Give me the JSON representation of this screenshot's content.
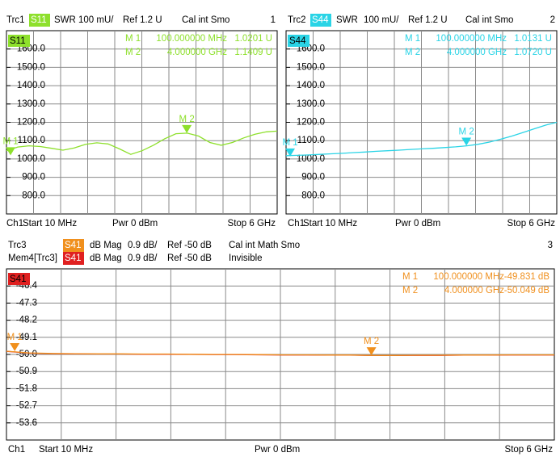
{
  "chart_data": [
    {
      "type": "line",
      "number": "1",
      "series": [
        {
          "name": "S11",
          "color": "#8ee02c",
          "trace": "Trc1",
          "format": "SWR",
          "scale": "100 mU/",
          "ref": "Ref 1.2 U",
          "status": "Cal int Smo",
          "values": [
            1045,
            1065,
            1072,
            1068,
            1058,
            1048,
            1060,
            1080,
            1088,
            1082,
            1055,
            1025,
            1045,
            1075,
            1110,
            1138,
            1141,
            1125,
            1090,
            1075,
            1090,
            1115,
            1135,
            1148,
            1152
          ]
        }
      ],
      "x": [
        10,
        260,
        510,
        760,
        1010,
        1260,
        1510,
        1760,
        2010,
        2260,
        2510,
        2760,
        3010,
        3260,
        3510,
        3760,
        4010,
        4260,
        4510,
        4760,
        5010,
        5260,
        5510,
        5760,
        6000
      ],
      "xlim": [
        10,
        6000
      ],
      "ylim": [
        700,
        1700
      ],
      "yticks": [
        {
          "value": 800,
          "label": "800.0"
        },
        {
          "value": 900,
          "label": "900.0"
        },
        {
          "value": 1000,
          "label": "1000.0"
        },
        {
          "value": 1100,
          "label": "1100.0"
        },
        {
          "value": 1200,
          "label": "1200.0"
        },
        {
          "value": 1300,
          "label": "1300.0"
        },
        {
          "value": 1400,
          "label": "1400.0"
        },
        {
          "value": 1500,
          "label": "1500.0"
        },
        {
          "value": 1600,
          "label": "1600.0"
        }
      ],
      "grid": true,
      "markers": {
        "names": [
          "M 1",
          "M 2"
        ],
        "x": [
          100,
          4000
        ],
        "x_labels": [
          "100.000000 MHz",
          "4.000000 GHz"
        ],
        "values": [
          1020.1,
          1140.9
        ],
        "value_labels": [
          "1.0201 U",
          "1.1409 U"
        ]
      },
      "footer": {
        "channel": "Ch1",
        "start": "Start 10 MHz",
        "power": "Pwr 0 dBm",
        "stop": "Stop 6 GHz"
      }
    },
    {
      "type": "line",
      "number": "2",
      "series": [
        {
          "name": "S44",
          "color": "#2ad4e6",
          "trace": "Trc2",
          "format": "SWR",
          "scale": "100 mU/",
          "ref": "Ref 1.2 U",
          "status": "Cal int Smo",
          "values": [
            1018,
            1020,
            1022,
            1025,
            1028,
            1031,
            1035,
            1038,
            1042,
            1045,
            1048,
            1052,
            1055,
            1058,
            1062,
            1066,
            1072,
            1080,
            1092,
            1108,
            1125,
            1145,
            1165,
            1185,
            1200
          ]
        }
      ],
      "x": [
        10,
        260,
        510,
        760,
        1010,
        1260,
        1510,
        1760,
        2010,
        2260,
        2510,
        2760,
        3010,
        3260,
        3510,
        3760,
        4010,
        4260,
        4510,
        4760,
        5010,
        5260,
        5510,
        5760,
        6000
      ],
      "xlim": [
        10,
        6000
      ],
      "ylim": [
        700,
        1700
      ],
      "yticks": [
        {
          "value": 800,
          "label": "800.0"
        },
        {
          "value": 900,
          "label": "900.0"
        },
        {
          "value": 1000,
          "label": "1000.0"
        },
        {
          "value": 1100,
          "label": "1100.0"
        },
        {
          "value": 1200,
          "label": "1200.0"
        },
        {
          "value": 1300,
          "label": "1300.0"
        },
        {
          "value": 1400,
          "label": "1400.0"
        },
        {
          "value": 1500,
          "label": "1500.0"
        },
        {
          "value": 1600,
          "label": "1600.0"
        }
      ],
      "grid": true,
      "markers": {
        "names": [
          "M 1",
          "M 2"
        ],
        "x": [
          100,
          4000
        ],
        "x_labels": [
          "100.000000 MHz",
          "4.000000 GHz"
        ],
        "values": [
          1013.1,
          1072.0
        ],
        "value_labels": [
          "1.0131 U",
          "1.0720 U"
        ]
      },
      "footer": {
        "channel": "Ch1",
        "start": "Start 10 MHz",
        "power": "Pwr 0 dBm",
        "stop": "Stop 6 GHz"
      }
    },
    {
      "type": "line",
      "number": "3",
      "series": [
        {
          "name": "S41",
          "color": "#f0901e",
          "trace": "Trc3",
          "format": "dB Mag",
          "scale": "0.9 dB/",
          "ref": "Ref -50 dB",
          "status": "Cal int Math Smo",
          "values": [
            -49.83,
            -49.92,
            -49.95,
            -49.96,
            -49.97,
            -49.97,
            -49.98,
            -49.98,
            -49.99,
            -50.0,
            -50.0,
            -50.01,
            -50.02,
            -50.02,
            -50.03,
            -50.03,
            -50.05,
            -50.05,
            -50.04,
            -50.04,
            -50.03,
            -50.03,
            -50.02,
            -50.02,
            -50.02
          ]
        },
        {
          "name": "S41",
          "color": "#e02020",
          "trace": "Mem4[Trc3]",
          "format": "dB Mag",
          "scale": "0.9 dB/",
          "ref": "Ref -50 dB",
          "status": "Invisible",
          "values": [
            -49.84,
            -49.93,
            -49.96,
            -49.97,
            -49.98,
            -49.98,
            -49.99,
            -49.99,
            -50.0,
            -50.01,
            -50.01,
            -50.02,
            -50.03,
            -50.03,
            -50.04,
            -50.04,
            -50.06,
            -50.06,
            -50.05,
            -50.05,
            -50.04,
            -50.04,
            -50.03,
            -50.03,
            -50.03
          ]
        }
      ],
      "x": [
        10,
        260,
        510,
        760,
        1010,
        1260,
        1510,
        1760,
        2010,
        2260,
        2510,
        2760,
        3010,
        3260,
        3510,
        3760,
        4010,
        4260,
        4510,
        4760,
        5010,
        5260,
        5510,
        5760,
        6000
      ],
      "xlim": [
        10,
        6000
      ],
      "ylim": [
        -54.5,
        -45.5
      ],
      "yticks": [
        -53.6,
        -52.7,
        -51.8,
        -50.9,
        {
          "value": -50.0,
          "label": "-50.0"
        },
        -49.1,
        -48.2,
        -47.3,
        -46.4
      ],
      "grid": true,
      "markers": {
        "names": [
          "M 1",
          "M 2"
        ],
        "x": [
          100,
          4000
        ],
        "x_labels": [
          "100.000000 MHz",
          "4.000000 GHz"
        ],
        "values": [
          -49.831,
          -50.049
        ],
        "value_labels": [
          "-49.831 dB",
          "-50.049 dB"
        ]
      },
      "footer": {
        "channel": "Ch1",
        "start": "Start 10 MHz",
        "power": "Pwr 0 dBm",
        "stop": "Stop 6 GHz"
      }
    }
  ]
}
